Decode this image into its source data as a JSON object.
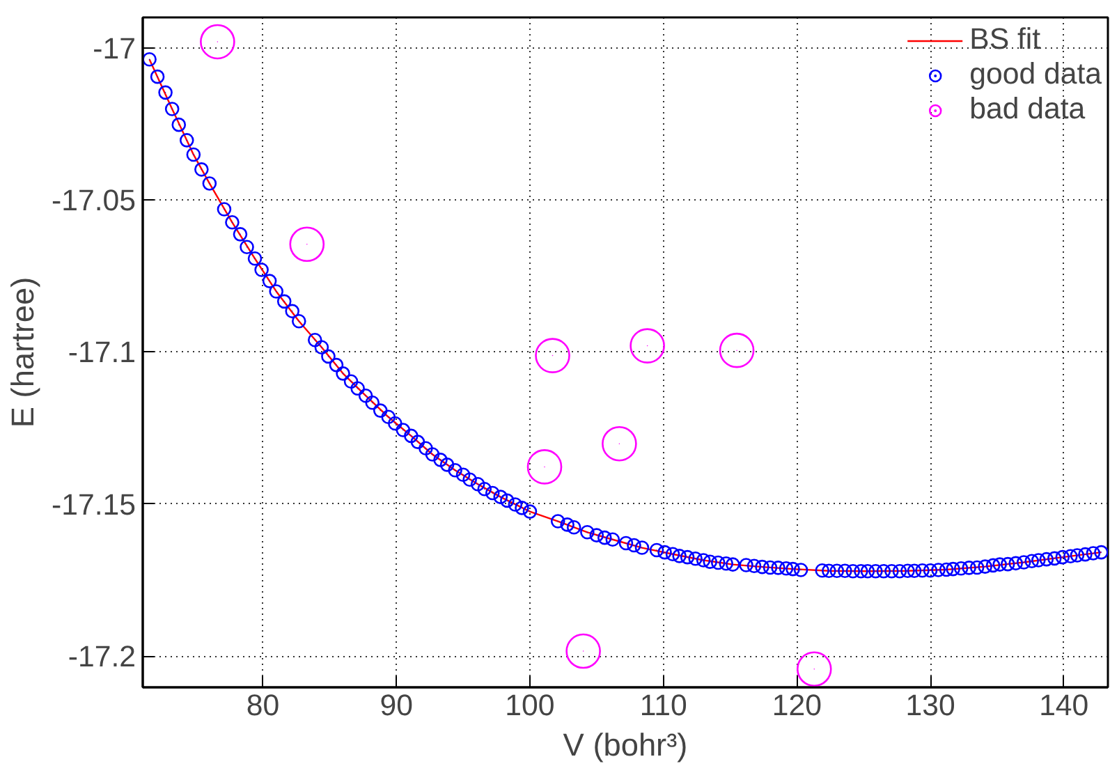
{
  "chart_data": {
    "type": "scatter",
    "xlabel": "V (bohr³)",
    "ylabel": "E (hartree)",
    "xlim": [
      71,
      143.3
    ],
    "ylim": [
      -17.2103,
      -16.99
    ],
    "xticks": [
      80,
      90,
      100,
      110,
      120,
      130,
      140
    ],
    "yticks": [
      -17,
      -17.05,
      -17.1,
      -17.15,
      -17.2
    ],
    "grid": true,
    "legend": "top right",
    "series": [
      {
        "name": "BS fit",
        "type": "line",
        "color": "#ff0000",
        "marker": "none",
        "line_style": "solid",
        "x": [
          71.5,
          73.2,
          74.8,
          76.0,
          77.7,
          79.4,
          81.0,
          82.7,
          84.4,
          86.0,
          87.7,
          89.4,
          91.1,
          92.7,
          94.4,
          96.1,
          97.8,
          100.0,
          102.1,
          104.3,
          106.2,
          108.4,
          110.7,
          113.0,
          115.2,
          117.4,
          119.7,
          122.4,
          125.3,
          128.3,
          131.2,
          134.1,
          137.0,
          139.9,
          142.8
        ],
        "values": [
          -17.0038,
          -17.0201,
          -17.0351,
          -17.0446,
          -17.0574,
          -17.0693,
          -17.0801,
          -17.0899,
          -17.0985,
          -17.1071,
          -17.1144,
          -17.1214,
          -17.1276,
          -17.1337,
          -17.1389,
          -17.1435,
          -17.1477,
          -17.1525,
          -17.1557,
          -17.1593,
          -17.1617,
          -17.1644,
          -17.1665,
          -17.1685,
          -17.1699,
          -17.1707,
          -17.1714,
          -17.172,
          -17.1721,
          -17.172,
          -17.1716,
          -17.1706,
          -17.1692,
          -17.1675,
          -17.1659
        ]
      },
      {
        "name": "good data",
        "color": "#0000ff",
        "marker": "circle",
        "x": [
          71.5,
          72.1,
          72.7,
          73.2,
          73.7,
          74.3,
          74.8,
          75.4,
          76.0,
          77.1,
          77.7,
          78.3,
          78.8,
          79.4,
          79.9,
          80.5,
          81.0,
          81.6,
          82.2,
          82.7,
          83.9,
          84.4,
          84.9,
          85.5,
          86.0,
          86.6,
          87.1,
          87.7,
          88.2,
          88.8,
          89.4,
          89.9,
          90.5,
          91.1,
          91.6,
          92.2,
          92.7,
          93.3,
          93.8,
          94.4,
          95.0,
          95.5,
          96.1,
          96.6,
          97.2,
          97.8,
          98.3,
          98.9,
          99.4,
          100.0,
          102.1,
          102.8,
          103.3,
          104.3,
          105.0,
          105.6,
          106.2,
          107.2,
          107.8,
          108.4,
          109.5,
          110.1,
          110.7,
          111.2,
          111.8,
          112.4,
          113.0,
          113.5,
          114.1,
          114.7,
          115.2,
          116.2,
          116.8,
          117.4,
          118.0,
          118.6,
          119.2,
          119.7,
          120.3,
          121.9,
          122.4,
          123.0,
          123.6,
          124.2,
          124.8,
          125.3,
          125.9,
          126.5,
          127.1,
          127.7,
          128.3,
          128.8,
          129.4,
          130.0,
          130.6,
          131.2,
          131.7,
          132.3,
          132.9,
          133.5,
          134.1,
          134.7,
          135.2,
          135.8,
          136.4,
          137.0,
          137.6,
          138.1,
          138.7,
          139.3,
          139.9,
          140.5,
          141.0,
          141.6,
          142.2,
          142.8
        ],
        "values": [
          -17.0038,
          -17.0095,
          -17.0147,
          -17.0201,
          -17.0253,
          -17.0304,
          -17.0351,
          -17.04,
          -17.0446,
          -17.0531,
          -17.0574,
          -17.0613,
          -17.0655,
          -17.0693,
          -17.073,
          -17.0767,
          -17.0801,
          -17.0834,
          -17.0866,
          -17.0899,
          -17.0961,
          -17.0985,
          -17.1015,
          -17.1043,
          -17.1071,
          -17.1097,
          -17.112,
          -17.1144,
          -17.1167,
          -17.1193,
          -17.1214,
          -17.1235,
          -17.1257,
          -17.1276,
          -17.1296,
          -17.1317,
          -17.1337,
          -17.1355,
          -17.1371,
          -17.1389,
          -17.1404,
          -17.142,
          -17.1435,
          -17.1451,
          -17.1464,
          -17.1477,
          -17.1489,
          -17.1502,
          -17.1513,
          -17.1525,
          -17.1557,
          -17.1568,
          -17.1577,
          -17.1593,
          -17.1603,
          -17.1611,
          -17.1617,
          -17.1629,
          -17.1636,
          -17.1644,
          -17.1652,
          -17.1659,
          -17.1665,
          -17.1671,
          -17.1675,
          -17.168,
          -17.1685,
          -17.169,
          -17.1693,
          -17.1696,
          -17.1699,
          -17.1701,
          -17.1704,
          -17.1707,
          -17.1709,
          -17.171,
          -17.1712,
          -17.1714,
          -17.1717,
          -17.1719,
          -17.172,
          -17.172,
          -17.172,
          -17.1721,
          -17.1721,
          -17.1721,
          -17.1721,
          -17.1721,
          -17.1721,
          -17.1721,
          -17.172,
          -17.172,
          -17.1719,
          -17.1719,
          -17.1717,
          -17.1716,
          -17.1714,
          -17.1712,
          -17.171,
          -17.1709,
          -17.1706,
          -17.1702,
          -17.1699,
          -17.1698,
          -17.1695,
          -17.1692,
          -17.1688,
          -17.1685,
          -17.1682,
          -17.1679,
          -17.1675,
          -17.1672,
          -17.1669,
          -17.1666,
          -17.1662,
          -17.1659
        ]
      },
      {
        "name": "bad data",
        "color": "#ff00ff",
        "marker": "circle",
        "x": [
          76.6,
          83.3,
          101.1,
          101.7,
          104.0,
          106.7,
          108.8,
          115.5,
          121.3
        ],
        "values": [
          -16.998,
          -17.0646,
          -17.1378,
          -17.1012,
          -17.1984,
          -17.1302,
          -17.098,
          -17.0995,
          -17.2043
        ]
      }
    ]
  }
}
